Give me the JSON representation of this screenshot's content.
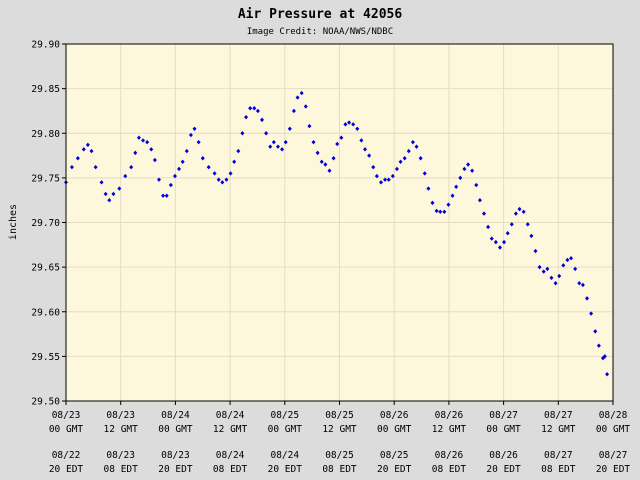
{
  "colors": {
    "background": "#dcdcdc",
    "plot_background": "#fdf7dc",
    "grid": "#e6dcc4",
    "series": "#0000dd"
  },
  "chart_data": {
    "type": "scatter",
    "title": "Air Pressure at 42056",
    "subtitle": "Image Credit: NOAA/NWS/NDBC",
    "ylabel": "inches",
    "xlabel": "",
    "grid": true,
    "ylim": [
      29.5,
      29.9
    ],
    "y_ticks": [
      "29.50",
      "29.55",
      "29.60",
      "29.65",
      "29.70",
      "29.75",
      "29.80",
      "29.85",
      "29.90"
    ],
    "xlim": [
      0,
      120
    ],
    "x_ticks": [
      {
        "x": 0,
        "date": "08/23",
        "gmt": "00 GMT",
        "edt_date": "08/22",
        "edt": "20 EDT"
      },
      {
        "x": 12,
        "date": "08/23",
        "gmt": "12 GMT",
        "edt_date": "08/23",
        "edt": "08 EDT"
      },
      {
        "x": 24,
        "date": "08/24",
        "gmt": "00 GMT",
        "edt_date": "08/23",
        "edt": "20 EDT"
      },
      {
        "x": 36,
        "date": "08/24",
        "gmt": "12 GMT",
        "edt_date": "08/24",
        "edt": "08 EDT"
      },
      {
        "x": 48,
        "date": "08/25",
        "gmt": "00 GMT",
        "edt_date": "08/24",
        "edt": "20 EDT"
      },
      {
        "x": 60,
        "date": "08/25",
        "gmt": "12 GMT",
        "edt_date": "08/25",
        "edt": "08 EDT"
      },
      {
        "x": 72,
        "date": "08/26",
        "gmt": "00 GMT",
        "edt_date": "08/25",
        "edt": "20 EDT"
      },
      {
        "x": 84,
        "date": "08/26",
        "gmt": "12 GMT",
        "edt_date": "08/26",
        "edt": "08 EDT"
      },
      {
        "x": 96,
        "date": "08/27",
        "gmt": "00 GMT",
        "edt_date": "08/26",
        "edt": "20 EDT"
      },
      {
        "x": 108,
        "date": "08/27",
        "gmt": "12 GMT",
        "edt_date": "08/27",
        "edt": "08 EDT"
      },
      {
        "x": 120,
        "date": "08/28",
        "gmt": "00 GMT",
        "edt_date": "08/27",
        "edt": "20 EDT"
      }
    ],
    "series": [
      {
        "name": "",
        "points": [
          [
            0,
            29.745
          ],
          [
            1.3,
            29.762
          ],
          [
            2.6,
            29.772
          ],
          [
            3.9,
            29.782
          ],
          [
            4.8,
            29.787
          ],
          [
            5.6,
            29.78
          ],
          [
            6.5,
            29.762
          ],
          [
            7.8,
            29.745
          ],
          [
            8.7,
            29.732
          ],
          [
            9.5,
            29.725
          ],
          [
            10.4,
            29.732
          ],
          [
            11.7,
            29.738
          ],
          [
            13.0,
            29.752
          ],
          [
            14.3,
            29.762
          ],
          [
            15.2,
            29.778
          ],
          [
            16.0,
            29.795
          ],
          [
            16.9,
            29.792
          ],
          [
            17.8,
            29.79
          ],
          [
            18.7,
            29.782
          ],
          [
            19.5,
            29.77
          ],
          [
            20.4,
            29.748
          ],
          [
            21.3,
            29.73
          ],
          [
            22.1,
            29.73
          ],
          [
            23.0,
            29.742
          ],
          [
            23.9,
            29.752
          ],
          [
            24.8,
            29.76
          ],
          [
            25.6,
            29.768
          ],
          [
            26.5,
            29.78
          ],
          [
            27.4,
            29.798
          ],
          [
            28.2,
            29.805
          ],
          [
            29.1,
            29.79
          ],
          [
            30.0,
            29.772
          ],
          [
            31.3,
            29.762
          ],
          [
            32.6,
            29.755
          ],
          [
            33.5,
            29.748
          ],
          [
            34.3,
            29.745
          ],
          [
            35.2,
            29.748
          ],
          [
            36.1,
            29.755
          ],
          [
            36.9,
            29.768
          ],
          [
            37.8,
            29.78
          ],
          [
            38.7,
            29.8
          ],
          [
            39.5,
            29.818
          ],
          [
            40.4,
            29.828
          ],
          [
            41.3,
            29.828
          ],
          [
            42.1,
            29.825
          ],
          [
            43.0,
            29.815
          ],
          [
            43.9,
            29.8
          ],
          [
            44.8,
            29.785
          ],
          [
            45.6,
            29.79
          ],
          [
            46.5,
            29.785
          ],
          [
            47.4,
            29.782
          ],
          [
            48.2,
            29.79
          ],
          [
            49.1,
            29.805
          ],
          [
            50.0,
            29.825
          ],
          [
            50.8,
            29.84
          ],
          [
            51.7,
            29.845
          ],
          [
            52.6,
            29.83
          ],
          [
            53.4,
            29.808
          ],
          [
            54.3,
            29.79
          ],
          [
            55.2,
            29.778
          ],
          [
            56.1,
            29.768
          ],
          [
            56.9,
            29.765
          ],
          [
            57.8,
            29.758
          ],
          [
            58.7,
            29.772
          ],
          [
            59.5,
            29.788
          ],
          [
            60.4,
            29.795
          ],
          [
            61.3,
            29.81
          ],
          [
            62.1,
            29.812
          ],
          [
            63.0,
            29.81
          ],
          [
            63.9,
            29.805
          ],
          [
            64.8,
            29.792
          ],
          [
            65.6,
            29.782
          ],
          [
            66.5,
            29.775
          ],
          [
            67.4,
            29.762
          ],
          [
            68.2,
            29.752
          ],
          [
            69.1,
            29.745
          ],
          [
            70.0,
            29.748
          ],
          [
            70.8,
            29.748
          ],
          [
            71.7,
            29.752
          ],
          [
            72.6,
            29.76
          ],
          [
            73.4,
            29.768
          ],
          [
            74.3,
            29.772
          ],
          [
            75.2,
            29.78
          ],
          [
            76.1,
            29.79
          ],
          [
            76.9,
            29.785
          ],
          [
            77.8,
            29.772
          ],
          [
            78.7,
            29.755
          ],
          [
            79.5,
            29.738
          ],
          [
            80.4,
            29.722
          ],
          [
            81.3,
            29.713
          ],
          [
            82.1,
            29.712
          ],
          [
            83.0,
            29.712
          ],
          [
            83.9,
            29.72
          ],
          [
            84.8,
            29.73
          ],
          [
            85.6,
            29.74
          ],
          [
            86.5,
            29.75
          ],
          [
            87.4,
            29.76
          ],
          [
            88.2,
            29.765
          ],
          [
            89.1,
            29.758
          ],
          [
            90.0,
            29.742
          ],
          [
            90.8,
            29.725
          ],
          [
            91.7,
            29.71
          ],
          [
            92.6,
            29.695
          ],
          [
            93.4,
            29.682
          ],
          [
            94.3,
            29.678
          ],
          [
            95.2,
            29.672
          ],
          [
            96.1,
            29.678
          ],
          [
            96.9,
            29.688
          ],
          [
            97.8,
            29.698
          ],
          [
            98.7,
            29.71
          ],
          [
            99.5,
            29.715
          ],
          [
            100.4,
            29.712
          ],
          [
            101.3,
            29.698
          ],
          [
            102.1,
            29.685
          ],
          [
            103.0,
            29.668
          ],
          [
            103.9,
            29.65
          ],
          [
            104.8,
            29.645
          ],
          [
            105.6,
            29.648
          ],
          [
            106.5,
            29.638
          ],
          [
            107.4,
            29.632
          ],
          [
            108.2,
            29.64
          ],
          [
            109.1,
            29.652
          ],
          [
            110.0,
            29.658
          ],
          [
            110.8,
            29.66
          ],
          [
            111.7,
            29.648
          ],
          [
            112.6,
            29.632
          ],
          [
            113.4,
            29.63
          ],
          [
            114.3,
            29.615
          ],
          [
            115.2,
            29.598
          ],
          [
            116.1,
            29.578
          ],
          [
            116.9,
            29.562
          ],
          [
            117.8,
            29.548
          ],
          [
            118.2,
            29.55
          ],
          [
            118.7,
            29.53
          ]
        ]
      }
    ]
  }
}
